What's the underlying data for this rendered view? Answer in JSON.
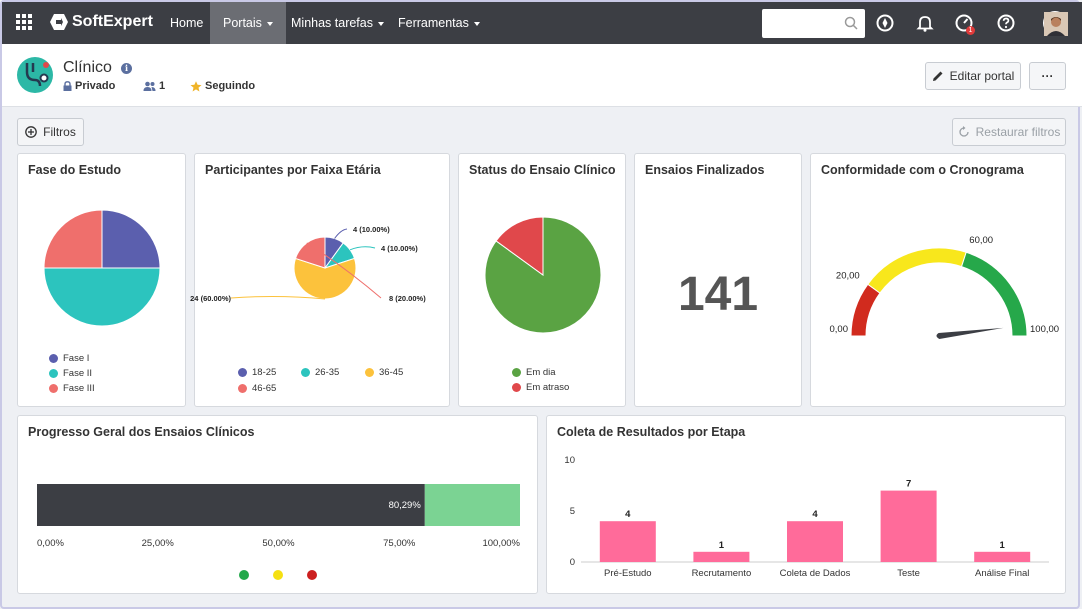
{
  "nav": {
    "brand": "SoftExpert",
    "items": [
      {
        "label": "Home",
        "caret": false
      },
      {
        "label": "Portais",
        "caret": true
      },
      {
        "label": "Minhas tarefas",
        "caret": true
      },
      {
        "label": "Ferramentas",
        "caret": true
      }
    ],
    "search_placeholder": "",
    "notification_count": "1"
  },
  "portal": {
    "title": "Clínico",
    "privacy": "Privado",
    "members": "1",
    "following": "Seguindo",
    "edit_label": "Editar portal",
    "more_label": "···"
  },
  "toolbar": {
    "filters_label": "Filtros",
    "restore_label": "Restaurar filtros"
  },
  "colors": {
    "nav_bg": "#3c3e44",
    "purple": "#5b5fae",
    "teal": "#2cc4be",
    "salmon": "#ef6f6c",
    "yellow": "#fcc23c",
    "green": "#5aa343",
    "red": "#e0484b",
    "pink": "#ff6b9a",
    "dark": "#3c3e44",
    "lightgreen": "#7bd393"
  },
  "cards": {
    "fase": {
      "title": "Fase do Estudo",
      "chart_data": {
        "type": "pie",
        "labels": [
          "Fase I",
          "Fase II",
          "Fase III"
        ],
        "values": [
          25,
          50,
          25
        ],
        "colors": [
          "#5b5fae",
          "#2cc4be",
          "#ef6f6c"
        ]
      }
    },
    "faixa": {
      "title": "Participantes por Faixa Etária",
      "chart_data": {
        "type": "pie",
        "labels": [
          "18-25",
          "26-35",
          "36-45",
          "46-65"
        ],
        "values": [
          4,
          4,
          24,
          8
        ],
        "data_labels": [
          "4 (10.00%)",
          "4 (10.00%)",
          "24 (60.00%)",
          "8 (20.00%)"
        ],
        "colors": [
          "#5b5fae",
          "#2cc4be",
          "#fcc23c",
          "#ef6f6c"
        ]
      }
    },
    "status": {
      "title": "Status do Ensaio Clínico",
      "chart_data": {
        "type": "pie",
        "labels": [
          "Em dia",
          "Em atraso"
        ],
        "values": [
          85,
          15
        ],
        "colors": [
          "#5aa343",
          "#e0484b"
        ]
      }
    },
    "finalizados": {
      "title": "Ensaios Finalizados",
      "value": "141"
    },
    "cronograma": {
      "title": "Conformidade com o Cronograma",
      "chart_data": {
        "type": "gauge",
        "min": 0,
        "max": 100,
        "bands": [
          {
            "from": 0,
            "to": 20,
            "color": "#d12b1e"
          },
          {
            "from": 20,
            "to": 60,
            "color": "#f8e71c"
          },
          {
            "from": 60,
            "to": 100,
            "color": "#26a84a"
          }
        ],
        "tick_labels": [
          "0,00",
          "20,00",
          "60,00",
          "100,00"
        ],
        "needle_value": 96
      }
    },
    "progresso": {
      "title": "Progresso Geral dos Ensaios Clínicos",
      "chart_data": {
        "type": "bar",
        "value": 80.29,
        "value_label": "80,29%",
        "xlim": [
          0,
          100
        ],
        "tick_labels": [
          "0,00%",
          "25,00%",
          "50,00%",
          "75,00%",
          "100,00%"
        ],
        "legend_colors": [
          "#22a84a",
          "#f5e012",
          "#cc1f1f"
        ]
      }
    },
    "coleta": {
      "title": "Coleta de Resultados por Etapa",
      "chart_data": {
        "type": "bar",
        "categories": [
          "Pré-Estudo",
          "Recrutamento",
          "Coleta de Dados",
          "Teste",
          "Análise Final"
        ],
        "values": [
          4,
          1,
          4,
          7,
          1
        ],
        "ylim": [
          0,
          10
        ],
        "yticks": [
          "0",
          "5",
          "10"
        ],
        "color": "#ff6b9a"
      }
    }
  }
}
